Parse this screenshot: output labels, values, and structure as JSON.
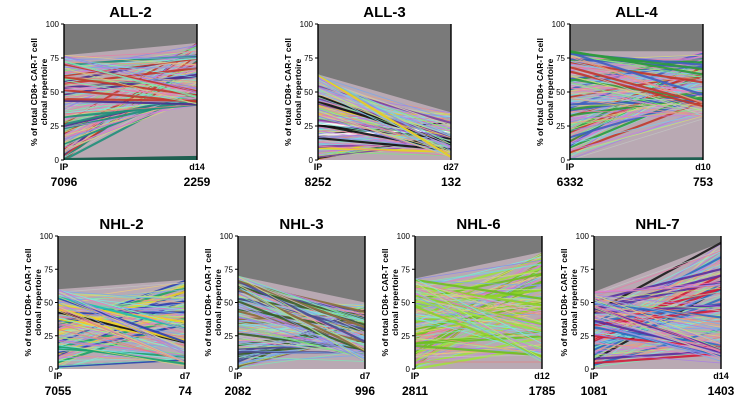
{
  "figure": {
    "ylabel_line1": "% of total CD8+ CAR-T cell",
    "ylabel_line2": "clonal repertoire",
    "x_start_label": "IP"
  },
  "chart_data": [
    {
      "type": "line",
      "title": "ALL-2",
      "x_end_label": "d14",
      "count_start": "7096",
      "count_end": "2259",
      "ylim": [
        0,
        100
      ],
      "yticks": [
        0,
        25,
        50,
        75,
        100
      ],
      "grid": false,
      "start_value": 77,
      "end_range": [
        40,
        86
      ],
      "dark_fill_end": 3,
      "accent": [
        "#1f8f7a",
        "#4a2f8f",
        "#c0392b"
      ]
    },
    {
      "type": "line",
      "title": "ALL-3",
      "x_end_label": "d27",
      "count_start": "8252",
      "count_end": "132",
      "ylim": [
        0,
        100
      ],
      "yticks": [
        0,
        25,
        50,
        75,
        100
      ],
      "grid": false,
      "start_value": 63,
      "end_range": [
        2,
        35
      ],
      "dark_fill_end": 0,
      "accent": [
        "#111111",
        "#e8d21c",
        "#7b3fa0",
        "#ffffff"
      ]
    },
    {
      "type": "line",
      "title": "ALL-4",
      "x_end_label": "d10",
      "count_start": "6332",
      "count_end": "753",
      "ylim": [
        0,
        100
      ],
      "yticks": [
        0,
        25,
        50,
        75,
        100
      ],
      "grid": false,
      "start_value": 80,
      "end_range": [
        30,
        80
      ],
      "dark_fill_end": 2,
      "accent": [
        "#2e9b3c",
        "#c0392b",
        "#3f5fbf"
      ]
    },
    {
      "type": "line",
      "title": "NHL-2",
      "x_end_label": "d7",
      "count_start": "7055",
      "count_end": "74",
      "ylim": [
        0,
        100
      ],
      "yticks": [
        0,
        25,
        50,
        75,
        100
      ],
      "grid": false,
      "start_value": 60,
      "end_range": [
        2,
        67
      ],
      "dark_fill_end": 0,
      "accent": [
        "#18c0b0",
        "#2b3fae",
        "#f2d21f",
        "#111111",
        "#1aa36b"
      ]
    },
    {
      "type": "line",
      "title": "NHL-3",
      "x_end_label": "d7",
      "count_start": "2082",
      "count_end": "996",
      "ylim": [
        0,
        100
      ],
      "yticks": [
        0,
        25,
        50,
        75,
        100
      ],
      "grid": false,
      "start_value": 70,
      "end_range": [
        5,
        50
      ],
      "dark_fill_end": 0,
      "accent": [
        "#3a5f2a",
        "#8a6d3b",
        "#4a4a8f"
      ]
    },
    {
      "type": "line",
      "title": "NHL-6",
      "x_end_label": "d12",
      "count_start": "2811",
      "count_end": "1785",
      "ylim": [
        0,
        100
      ],
      "yticks": [
        0,
        25,
        50,
        75,
        100
      ],
      "grid": false,
      "start_value": 68,
      "end_range": [
        5,
        88
      ],
      "dark_fill_end": 0,
      "accent": [
        "#8fd12a",
        "#6fbf20",
        "#a0e040"
      ]
    },
    {
      "type": "line",
      "title": "NHL-7",
      "x_end_label": "d14",
      "count_start": "1081",
      "count_end": "1403",
      "ylim": [
        0,
        100
      ],
      "yticks": [
        0,
        25,
        50,
        75,
        100
      ],
      "grid": false,
      "start_value": 58,
      "end_range": [
        3,
        95
      ],
      "dark_fill_end": 0,
      "accent": [
        "#d01c3a",
        "#1a1a1a",
        "#5a2f9f",
        "#2f6fbf"
      ]
    }
  ]
}
